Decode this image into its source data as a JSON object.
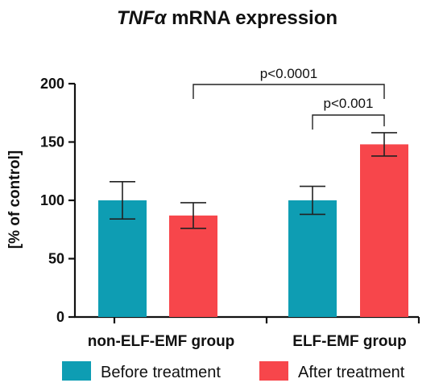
{
  "chart_data": {
    "type": "bar",
    "title_italic": "TNFα",
    "title_rest": " mRNA expression",
    "ylabel": "[% of control]",
    "xlabel": "",
    "ylim": [
      0,
      200
    ],
    "yticks": [
      0,
      50,
      100,
      150,
      200
    ],
    "grid": false,
    "legend_position": "bottom",
    "categories": [
      "non-ELF-EMF group",
      "ELF-EMF group"
    ],
    "series": [
      {
        "name": "Before treatment",
        "color": "#0e9db3",
        "values": [
          100,
          100
        ],
        "errors": [
          16,
          12
        ]
      },
      {
        "name": "After treatment",
        "color": "#f7464b",
        "values": [
          87,
          148
        ],
        "errors": [
          11,
          10
        ]
      }
    ],
    "annotations": [
      {
        "label": "p<0.0001",
        "from": [
          0,
          1
        ],
        "to": [
          1,
          1
        ]
      },
      {
        "label": "p<0.001",
        "from": [
          1,
          0
        ],
        "to": [
          1,
          1
        ]
      }
    ]
  }
}
